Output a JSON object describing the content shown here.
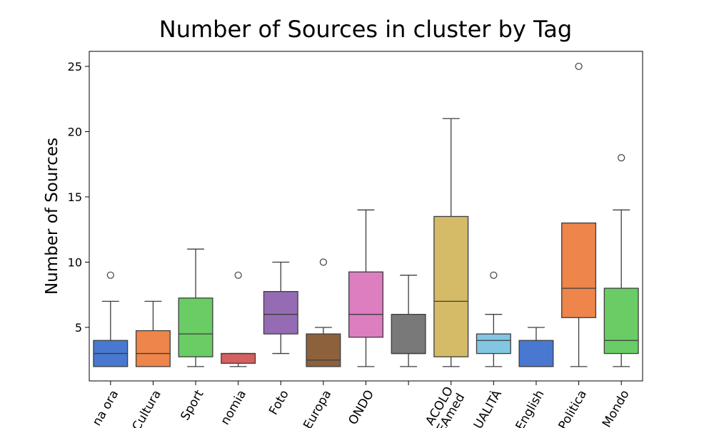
{
  "chart_data": {
    "type": "box",
    "title": "Number of Sources in cluster by Tag",
    "y_label": "Number of Sources",
    "categories": [
      "na ora",
      "Cultura",
      "Sport",
      "nomia",
      "Foto",
      "Europa",
      "ONDO",
      null,
      "ACOLO\nEAmed",
      "UALITÀ",
      "English",
      "Politica",
      "Mondo"
    ],
    "boxes": [
      {
        "low": 2,
        "q1": 2,
        "median": 3,
        "q3": 4,
        "high": 7,
        "outliers": [
          9
        ],
        "color": "#4878d0"
      },
      {
        "low": 2,
        "q1": 2,
        "median": 3,
        "q3": 4.75,
        "high": 7,
        "outliers": [],
        "color": "#ee854a"
      },
      {
        "low": 2,
        "q1": 2.75,
        "median": 4.5,
        "q3": 7.25,
        "high": 11,
        "outliers": [],
        "color": "#6acc64"
      },
      {
        "low": 2,
        "q1": 2.25,
        "median": 3,
        "q3": 3,
        "high": 3,
        "outliers": [
          9
        ],
        "color": "#d65f5f"
      },
      {
        "low": 3,
        "q1": 4.5,
        "median": 6,
        "q3": 7.75,
        "high": 10,
        "outliers": [],
        "color": "#956cb4"
      },
      {
        "low": 2,
        "q1": 2,
        "median": 2.5,
        "q3": 4.5,
        "high": 5,
        "outliers": [
          10
        ],
        "color": "#8c613c"
      },
      {
        "low": 2,
        "q1": 4.25,
        "median": 6,
        "q3": 9.25,
        "high": 14,
        "outliers": [],
        "color": "#dc7ec0"
      },
      {
        "low": 2,
        "q1": 3,
        "median": 3,
        "q3": 6,
        "high": 9,
        "outliers": [],
        "color": "#797979"
      },
      {
        "low": 2,
        "q1": 2.75,
        "median": 7,
        "q3": 13.5,
        "high": 21,
        "outliers": [],
        "color": "#d5bb67"
      },
      {
        "low": 2,
        "q1": 3,
        "median": 4,
        "q3": 4.5,
        "high": 6,
        "outliers": [
          9
        ],
        "color": "#82c6e2"
      },
      {
        "low": 2,
        "q1": 2,
        "median": 2,
        "q3": 4,
        "high": 5,
        "outliers": [],
        "color": "#4878d0"
      },
      {
        "low": 2,
        "q1": 5.75,
        "median": 8,
        "q3": 13,
        "high": 13,
        "outliers": [
          25
        ],
        "color": "#ee854a"
      },
      {
        "low": 2,
        "q1": 3,
        "median": 4,
        "q3": 8,
        "high": 14,
        "outliers": [
          18
        ],
        "color": "#6acc64"
      }
    ],
    "ylim": [
      0.9,
      26.15
    ],
    "yticks": [
      5,
      10,
      15,
      20,
      25
    ]
  }
}
